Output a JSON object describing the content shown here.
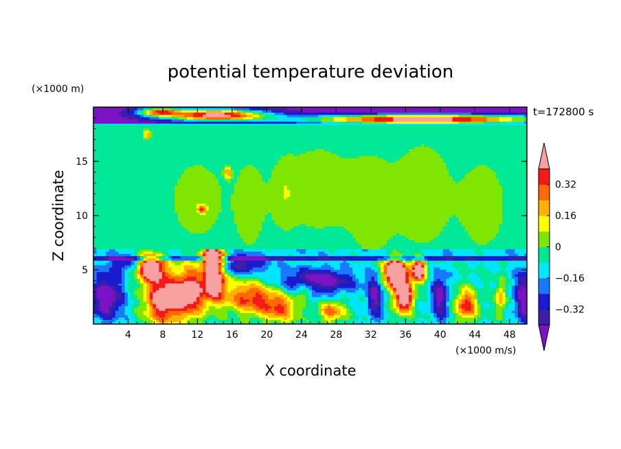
{
  "chart_data": {
    "type": "heatmap",
    "title": "potential temperature deviation",
    "time_label": "t=172800 s",
    "xlabel": "X coordinate",
    "ylabel": "Z coordinate",
    "x_unit": "(×1000 m/s)",
    "y_unit": "(×1000 m)",
    "xlim": [
      0,
      50
    ],
    "ylim": [
      0,
      20
    ],
    "x_ticks": [
      4,
      8,
      12,
      16,
      20,
      24,
      28,
      32,
      36,
      40,
      44,
      48
    ],
    "y_ticks": [
      5,
      10,
      15
    ],
    "colorbar": {
      "levels": [
        -0.4,
        -0.32,
        -0.24,
        -0.16,
        -0.08,
        0,
        0.08,
        0.16,
        0.24,
        0.32,
        0.4
      ],
      "colors": [
        "#7b12c4",
        "#3c1fa8",
        "#1a1acf",
        "#1a78ff",
        "#00e5ff",
        "#00e896",
        "#7ee600",
        "#ffff00",
        "#ffb300",
        "#ff6a00",
        "#f51919",
        "#f7a1a1"
      ],
      "labels": [
        "0.32",
        "0.16",
        "0",
        "−0.16",
        "−0.32"
      ],
      "label_values": [
        0.32,
        0.16,
        0,
        -0.16,
        -0.32
      ]
    },
    "features": [
      {
        "type": "band",
        "z": [
          18.4,
          20
        ],
        "value": -0.45
      },
      {
        "type": "band",
        "z": [
          0,
          6.6
        ],
        "value": -0.1
      },
      {
        "type": "band",
        "z": [
          6.6,
          18.4
        ],
        "value": -0.05
      },
      {
        "type": "blob",
        "x": [
          2,
          14
        ],
        "z": [
          6.5,
          0.2
        ],
        "value": 0.3
      },
      {
        "type": "blob",
        "x": [
          16,
          24
        ],
        "z": [
          2.5,
          0.8
        ],
        "value": 0.2
      },
      {
        "type": "blob",
        "x": [
          33,
          37
        ],
        "z": [
          5,
          2
        ],
        "value": 0.3
      }
    ]
  }
}
